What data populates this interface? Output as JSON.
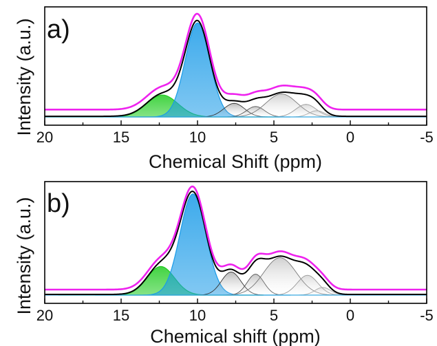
{
  "chart_data": [
    {
      "type": "area",
      "panel_label": "a)",
      "xlabel": "Chemical Shift (ppm)",
      "ylabel": "Intensity (a.u.)",
      "xlim": [
        20,
        -5
      ],
      "x_reversed": true,
      "xticks": [
        20,
        15,
        10,
        5,
        0,
        -5
      ],
      "grid": false,
      "legend": "none",
      "baseline_fit": 0.0,
      "baseline_exp": 0.07,
      "components": [
        {
          "center": 12.3,
          "fwhm": 2.4,
          "height": 0.21,
          "color": "#22cc22",
          "kind": "filled"
        },
        {
          "center": 10.0,
          "fwhm": 1.9,
          "height": 0.9,
          "color": "#1a9be8",
          "kind": "filled"
        },
        {
          "center": 7.6,
          "fwhm": 1.6,
          "height": 0.13,
          "color": "#333333",
          "kind": "gradient"
        },
        {
          "center": 6.2,
          "fwhm": 1.4,
          "height": 0.1,
          "color": "#555555",
          "kind": "gradient"
        },
        {
          "center": 4.5,
          "fwhm": 2.4,
          "height": 0.22,
          "color": "#777777",
          "kind": "gradient"
        },
        {
          "center": 2.9,
          "fwhm": 1.6,
          "height": 0.12,
          "color": "#999999",
          "kind": "gradient"
        },
        {
          "center": 2.2,
          "fwhm": 1.2,
          "height": 0.06,
          "color": "#aaaaaa",
          "kind": "gradient"
        }
      ],
      "ylim": [
        0,
        1.15
      ]
    },
    {
      "type": "area",
      "panel_label": "b)",
      "xlabel": "Chemical shift (ppm)",
      "ylabel": "Intensity (a.u.)",
      "xlim": [
        20,
        -5
      ],
      "x_reversed": true,
      "xticks": [
        20,
        15,
        10,
        5,
        0,
        -5
      ],
      "grid": false,
      "legend": "none",
      "baseline_fit": 0.0,
      "baseline_exp": 0.05,
      "components": [
        {
          "center": 12.4,
          "fwhm": 2.1,
          "height": 0.26,
          "color": "#22cc22",
          "kind": "filled"
        },
        {
          "center": 10.3,
          "fwhm": 2.0,
          "height": 0.92,
          "color": "#1a9be8",
          "kind": "filled"
        },
        {
          "center": 7.8,
          "fwhm": 1.5,
          "height": 0.21,
          "color": "#333333",
          "kind": "gradient"
        },
        {
          "center": 6.2,
          "fwhm": 1.3,
          "height": 0.19,
          "color": "#555555",
          "kind": "gradient"
        },
        {
          "center": 4.6,
          "fwhm": 2.5,
          "height": 0.34,
          "color": "#777777",
          "kind": "gradient"
        },
        {
          "center": 2.8,
          "fwhm": 1.6,
          "height": 0.18,
          "color": "#999999",
          "kind": "gradient"
        },
        {
          "center": 1.8,
          "fwhm": 1.2,
          "height": 0.07,
          "color": "#aaaaaa",
          "kind": "gradient"
        }
      ],
      "ylim": [
        0,
        1.1
      ]
    }
  ],
  "colors": {
    "experimental": "#ee22ee",
    "fit_sum": "#000000",
    "axis": "#000000"
  }
}
